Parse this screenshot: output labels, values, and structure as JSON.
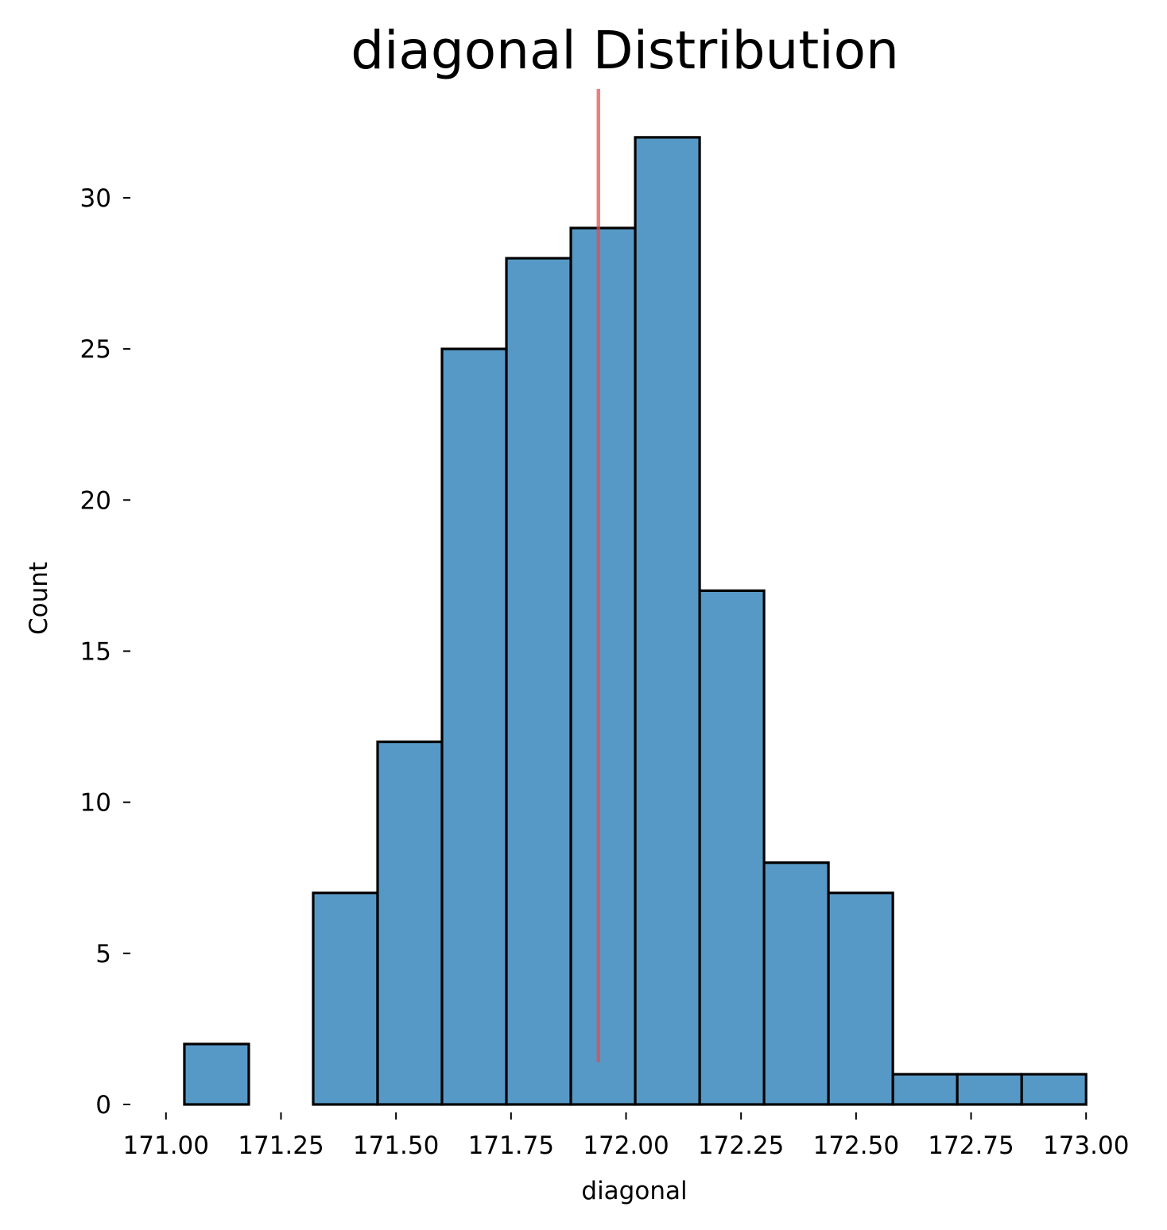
{
  "chart_data": {
    "type": "bar",
    "title": "diagonal Distribution",
    "xlabel": "diagonal",
    "ylabel": "Count",
    "xlim": [
      170.99,
      173.01
    ],
    "ylim": [
      0,
      33.6
    ],
    "x_ticks": [
      171.0,
      171.25,
      171.5,
      171.75,
      172.0,
      172.25,
      172.5,
      172.75,
      173.0
    ],
    "x_tick_labels": [
      "171.00",
      "171.25",
      "171.50",
      "171.75",
      "172.00",
      "172.25",
      "172.50",
      "172.75",
      "173.00"
    ],
    "y_ticks": [
      0,
      5,
      10,
      15,
      20,
      25,
      30
    ],
    "y_tick_labels": [
      "0",
      "5",
      "10",
      "15",
      "20",
      "25",
      "30"
    ],
    "bins": [
      {
        "x0": 171.04,
        "x1": 171.18,
        "count": 2
      },
      {
        "x0": 171.18,
        "x1": 171.32,
        "count": 0
      },
      {
        "x0": 171.32,
        "x1": 171.46,
        "count": 7
      },
      {
        "x0": 171.46,
        "x1": 171.6,
        "count": 12
      },
      {
        "x0": 171.6,
        "x1": 171.74,
        "count": 25
      },
      {
        "x0": 171.74,
        "x1": 171.88,
        "count": 28
      },
      {
        "x0": 171.88,
        "x1": 172.02,
        "count": 29
      },
      {
        "x0": 172.02,
        "x1": 172.16,
        "count": 32
      },
      {
        "x0": 172.16,
        "x1": 172.3,
        "count": 17
      },
      {
        "x0": 172.3,
        "x1": 172.44,
        "count": 8
      },
      {
        "x0": 172.44,
        "x1": 172.58,
        "count": 7
      },
      {
        "x0": 172.58,
        "x1": 172.72,
        "count": 1
      },
      {
        "x0": 172.72,
        "x1": 172.86,
        "count": 1
      },
      {
        "x0": 172.86,
        "x1": 173.0,
        "count": 1
      }
    ],
    "bar_color": "#5799C6",
    "bar_edge_color": "#000000",
    "reference_line": {
      "x": 171.94,
      "y_range": [
        1.4,
        33.6
      ],
      "color": "#E34A4A",
      "opacity": 0.7
    },
    "grid": false,
    "legend": "none"
  }
}
